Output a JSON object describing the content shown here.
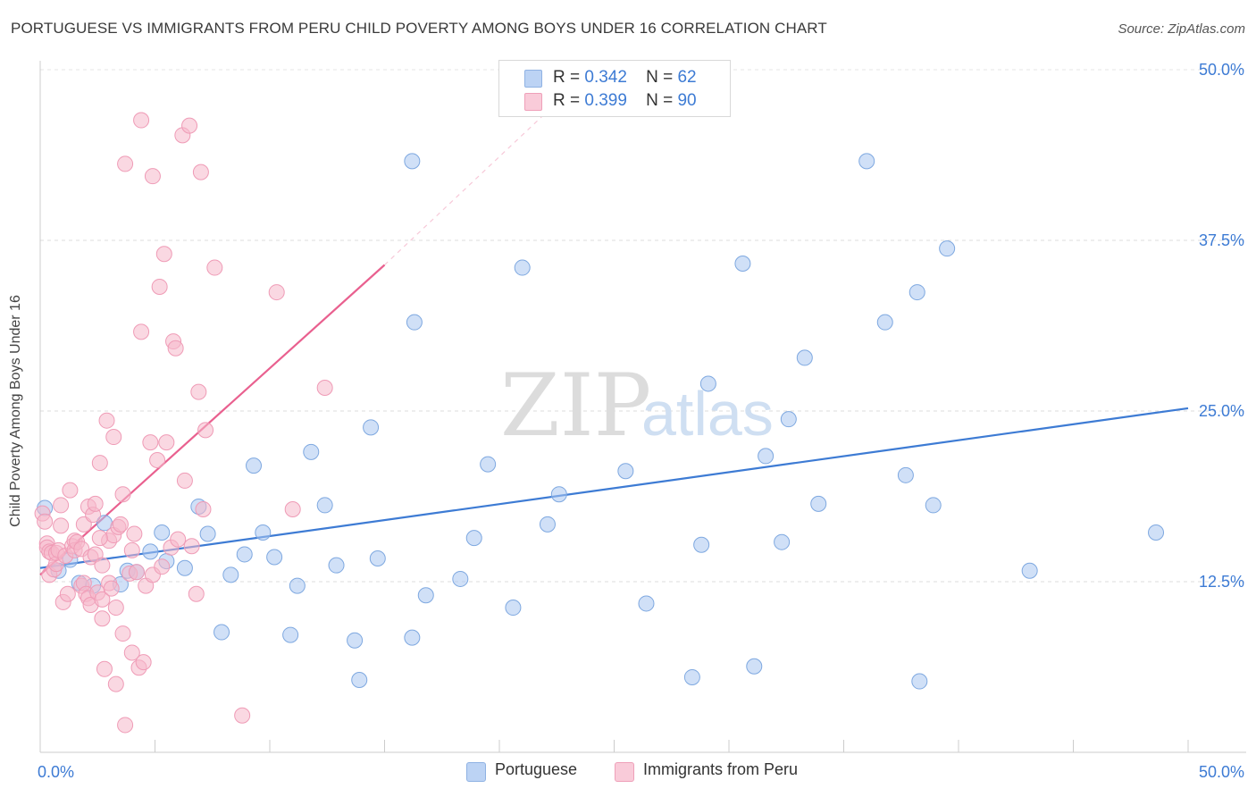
{
  "title": "PORTUGUESE VS IMMIGRANTS FROM PERU CHILD POVERTY AMONG BOYS UNDER 16 CORRELATION CHART",
  "source": "Source: ZipAtlas.com",
  "watermark": {
    "zip": "ZIP",
    "atlas": "atlas"
  },
  "legend_top": {
    "r_label": "R =",
    "n_label": "N =",
    "rows": [
      {
        "r": "0.342",
        "n": "62",
        "color": "#a9c6f0"
      },
      {
        "r": "0.399",
        "n": "90",
        "color": "#f6b8cb"
      }
    ]
  },
  "legend_bottom": [
    {
      "label": "Portuguese",
      "color": "#a9c6f0"
    },
    {
      "label": "Immigrants from Peru",
      "color": "#f6b8cb"
    }
  ],
  "chart_data": {
    "type": "scatter",
    "title": "PORTUGUESE VS IMMIGRANTS FROM PERU CHILD POVERTY AMONG BOYS UNDER 16 CORRELATION CHART",
    "xlabel": "",
    "ylabel": "Child Poverty Among Boys Under 16",
    "xlim": [
      0,
      50
    ],
    "ylim": [
      0,
      50
    ],
    "x_tick_labels": [
      "0.0%",
      "50.0%"
    ],
    "y_ticks": [
      12.5,
      25.0,
      37.5,
      50.0
    ],
    "y_tick_labels": [
      "12.5%",
      "25.0%",
      "37.5%",
      "50.0%"
    ],
    "grid": true,
    "series": [
      {
        "name": "Portuguese",
        "color": "#3d7bd4",
        "marker_fill": "#a9c6f0",
        "marker_stroke": "#7ea8e0",
        "trend": {
          "x1": 0.0,
          "y1": 13.5,
          "x2": 50.0,
          "y2": 25.2,
          "style": "solid"
        },
        "points": [
          [
            0.2,
            17.9
          ],
          [
            0.8,
            13.3
          ],
          [
            1.3,
            14.1
          ],
          [
            1.7,
            12.4
          ],
          [
            2.3,
            12.2
          ],
          [
            2.8,
            16.8
          ],
          [
            3.5,
            12.3
          ],
          [
            3.8,
            13.3
          ],
          [
            4.2,
            13.2
          ],
          [
            4.8,
            14.7
          ],
          [
            5.3,
            16.1
          ],
          [
            5.5,
            14.0
          ],
          [
            6.3,
            13.5
          ],
          [
            6.9,
            18.0
          ],
          [
            7.3,
            16.0
          ],
          [
            7.9,
            8.8
          ],
          [
            8.3,
            13.0
          ],
          [
            8.9,
            14.5
          ],
          [
            9.3,
            21.0
          ],
          [
            9.7,
            16.1
          ],
          [
            10.2,
            14.3
          ],
          [
            10.9,
            8.6
          ],
          [
            11.2,
            12.2
          ],
          [
            11.8,
            22.0
          ],
          [
            12.4,
            18.1
          ],
          [
            12.9,
            13.7
          ],
          [
            13.7,
            8.2
          ],
          [
            13.9,
            5.3
          ],
          [
            14.4,
            23.8
          ],
          [
            14.7,
            14.2
          ],
          [
            16.2,
            43.3
          ],
          [
            16.2,
            8.4
          ],
          [
            16.3,
            31.5
          ],
          [
            16.8,
            11.5
          ],
          [
            18.3,
            12.7
          ],
          [
            18.9,
            15.7
          ],
          [
            19.5,
            21.1
          ],
          [
            20.6,
            10.6
          ],
          [
            21.0,
            35.5
          ],
          [
            22.1,
            16.7
          ],
          [
            22.6,
            18.9
          ],
          [
            25.5,
            20.6
          ],
          [
            26.4,
            10.9
          ],
          [
            28.4,
            5.5
          ],
          [
            28.8,
            15.2
          ],
          [
            29.1,
            27.0
          ],
          [
            30.6,
            35.8
          ],
          [
            31.1,
            6.3
          ],
          [
            31.6,
            21.7
          ],
          [
            32.3,
            15.4
          ],
          [
            32.6,
            24.4
          ],
          [
            33.3,
            28.9
          ],
          [
            33.9,
            18.2
          ],
          [
            36.0,
            43.3
          ],
          [
            36.8,
            31.5
          ],
          [
            37.7,
            20.3
          ],
          [
            38.2,
            33.7
          ],
          [
            38.3,
            5.2
          ],
          [
            38.9,
            18.1
          ],
          [
            39.5,
            36.9
          ],
          [
            43.1,
            13.3
          ],
          [
            48.6,
            16.1
          ]
        ]
      },
      {
        "name": "Immigrants from Peru",
        "color": "#e9608f",
        "marker_fill": "#f6b8cb",
        "marker_stroke": "#ef9bb6",
        "trend": {
          "x1": 0.0,
          "y1": 13.0,
          "x2": 15.0,
          "y2": 35.7,
          "style": "solid",
          "ext_x2": 22.0,
          "ext_y2": 46.8,
          "ext_style": "dashed"
        },
        "points": [
          [
            0.1,
            17.5
          ],
          [
            0.2,
            16.9
          ],
          [
            0.3,
            15.3
          ],
          [
            0.3,
            15.0
          ],
          [
            0.4,
            14.7
          ],
          [
            0.4,
            13.0
          ],
          [
            0.5,
            14.6
          ],
          [
            0.6,
            13.4
          ],
          [
            0.7,
            13.8
          ],
          [
            0.7,
            14.6
          ],
          [
            0.8,
            14.8
          ],
          [
            0.9,
            18.1
          ],
          [
            0.9,
            16.6
          ],
          [
            1.0,
            11.0
          ],
          [
            1.1,
            14.4
          ],
          [
            1.2,
            11.6
          ],
          [
            1.3,
            19.2
          ],
          [
            1.4,
            15.1
          ],
          [
            1.5,
            15.5
          ],
          [
            1.5,
            14.8
          ],
          [
            1.6,
            15.4
          ],
          [
            1.8,
            14.9
          ],
          [
            1.8,
            12.2
          ],
          [
            1.9,
            12.4
          ],
          [
            1.9,
            16.7
          ],
          [
            2.0,
            11.6
          ],
          [
            2.1,
            11.3
          ],
          [
            2.1,
            18.0
          ],
          [
            2.2,
            14.3
          ],
          [
            2.2,
            10.8
          ],
          [
            2.3,
            17.4
          ],
          [
            2.4,
            14.5
          ],
          [
            2.4,
            18.2
          ],
          [
            2.5,
            11.7
          ],
          [
            2.6,
            21.2
          ],
          [
            2.7,
            13.7
          ],
          [
            2.7,
            11.2
          ],
          [
            2.7,
            9.8
          ],
          [
            2.8,
            6.1
          ],
          [
            2.9,
            24.3
          ],
          [
            3.0,
            15.5
          ],
          [
            3.0,
            12.4
          ],
          [
            3.1,
            12.0
          ],
          [
            3.2,
            23.1
          ],
          [
            3.2,
            15.9
          ],
          [
            3.3,
            10.6
          ],
          [
            3.3,
            5.0
          ],
          [
            3.4,
            16.5
          ],
          [
            3.5,
            16.7
          ],
          [
            3.6,
            18.9
          ],
          [
            3.6,
            8.7
          ],
          [
            3.7,
            43.1
          ],
          [
            3.7,
            2.0
          ],
          [
            3.9,
            13.1
          ],
          [
            4.0,
            14.8
          ],
          [
            4.0,
            7.3
          ],
          [
            4.1,
            16.0
          ],
          [
            4.2,
            13.2
          ],
          [
            4.3,
            6.2
          ],
          [
            4.4,
            30.8
          ],
          [
            4.4,
            46.3
          ],
          [
            4.5,
            6.6
          ],
          [
            4.6,
            12.2
          ],
          [
            4.8,
            22.7
          ],
          [
            4.9,
            42.2
          ],
          [
            4.9,
            13.0
          ],
          [
            5.1,
            21.4
          ],
          [
            5.2,
            34.1
          ],
          [
            5.3,
            13.6
          ],
          [
            5.4,
            36.5
          ],
          [
            5.5,
            22.7
          ],
          [
            5.7,
            15.0
          ],
          [
            5.8,
            30.1
          ],
          [
            5.9,
            29.6
          ],
          [
            6.0,
            15.6
          ],
          [
            6.2,
            45.2
          ],
          [
            6.3,
            19.9
          ],
          [
            6.5,
            45.9
          ],
          [
            6.6,
            15.1
          ],
          [
            6.8,
            11.6
          ],
          [
            6.9,
            26.4
          ],
          [
            7.0,
            42.5
          ],
          [
            7.1,
            17.8
          ],
          [
            7.2,
            23.6
          ],
          [
            7.6,
            35.5
          ],
          [
            8.8,
            2.7
          ],
          [
            10.3,
            33.7
          ],
          [
            11.0,
            17.8
          ],
          [
            12.4,
            26.7
          ],
          [
            2.6,
            15.7
          ]
        ]
      }
    ]
  }
}
